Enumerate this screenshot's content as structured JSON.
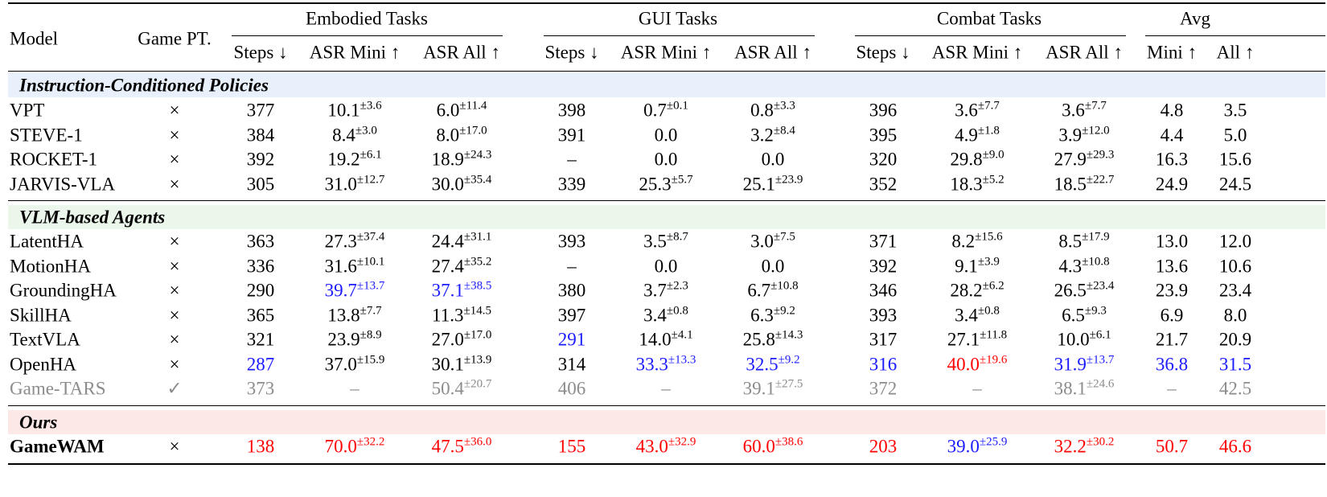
{
  "headers": {
    "model": "Model",
    "game_pt": "Game PT.",
    "groups": [
      "Embodied Tasks",
      "GUI Tasks",
      "Combat Tasks",
      "Avg"
    ],
    "sub": [
      "Steps ↓",
      "ASR Mini ↑",
      "ASR All ↑",
      "Steps ↓",
      "ASR Mini ↑",
      "ASR All ↑",
      "Steps ↓",
      "ASR Mini ↑",
      "ASR All ↑",
      "Mini ↑",
      "All ↑"
    ]
  },
  "sections": [
    {
      "title": "Instruction-Conditioned Policies",
      "rows": [
        {
          "model": "VPT",
          "pt": "×",
          "cells": [
            [
              "377",
              ""
            ],
            [
              "10.1",
              "±3.6"
            ],
            [
              "6.0",
              "±11.4"
            ],
            [
              "398",
              ""
            ],
            [
              "0.7",
              "±0.1"
            ],
            [
              "0.8",
              "±3.3"
            ],
            [
              "396",
              ""
            ],
            [
              "3.6",
              "±7.7"
            ],
            [
              "3.6",
              "±7.7"
            ],
            [
              "4.8",
              ""
            ],
            [
              "3.5",
              ""
            ]
          ]
        },
        {
          "model": "STEVE-1",
          "pt": "×",
          "cells": [
            [
              "384",
              ""
            ],
            [
              "8.4",
              "±3.0"
            ],
            [
              "8.0",
              "±17.0"
            ],
            [
              "391",
              ""
            ],
            [
              "0.0",
              ""
            ],
            [
              "3.2",
              "±8.4"
            ],
            [
              "395",
              ""
            ],
            [
              "4.9",
              "±1.8"
            ],
            [
              "3.9",
              "±12.0"
            ],
            [
              "4.4",
              ""
            ],
            [
              "5.0",
              ""
            ]
          ]
        },
        {
          "model": "ROCKET-1",
          "pt": "×",
          "cells": [
            [
              "392",
              ""
            ],
            [
              "19.2",
              "±6.1"
            ],
            [
              "18.9",
              "±24.3"
            ],
            [
              "–",
              ""
            ],
            [
              "0.0",
              ""
            ],
            [
              "0.0",
              ""
            ],
            [
              "320",
              ""
            ],
            [
              "29.8",
              "±9.0"
            ],
            [
              "27.9",
              "±29.3"
            ],
            [
              "16.3",
              ""
            ],
            [
              "15.6",
              ""
            ]
          ]
        },
        {
          "model": "JARVIS-VLA",
          "pt": "×",
          "cells": [
            [
              "305",
              ""
            ],
            [
              "31.0",
              "±12.7"
            ],
            [
              "30.0",
              "±35.4"
            ],
            [
              "339",
              ""
            ],
            [
              "25.3",
              "±5.7"
            ],
            [
              "25.1",
              "±23.9"
            ],
            [
              "352",
              ""
            ],
            [
              "18.3",
              "±5.2"
            ],
            [
              "18.5",
              "±22.7"
            ],
            [
              "24.9",
              ""
            ],
            [
              "24.5",
              ""
            ]
          ]
        }
      ]
    },
    {
      "title": "VLM-based Agents",
      "rows": [
        {
          "model": "LatentHA",
          "pt": "×",
          "cells": [
            [
              "363",
              ""
            ],
            [
              "27.3",
              "±37.4"
            ],
            [
              "24.4",
              "±31.1"
            ],
            [
              "393",
              ""
            ],
            [
              "3.5",
              "±8.7"
            ],
            [
              "3.0",
              "±7.5"
            ],
            [
              "371",
              ""
            ],
            [
              "8.2",
              "±15.6"
            ],
            [
              "8.5",
              "±17.9"
            ],
            [
              "13.0",
              ""
            ],
            [
              "12.0",
              ""
            ]
          ]
        },
        {
          "model": "MotionHA",
          "pt": "×",
          "cells": [
            [
              "336",
              ""
            ],
            [
              "31.6",
              "±10.1"
            ],
            [
              "27.4",
              "±35.2"
            ],
            [
              "–",
              ""
            ],
            [
              "0.0",
              ""
            ],
            [
              "0.0",
              ""
            ],
            [
              "392",
              ""
            ],
            [
              "9.1",
              "±3.9"
            ],
            [
              "4.3",
              "±10.8"
            ],
            [
              "13.6",
              ""
            ],
            [
              "10.6",
              ""
            ]
          ]
        },
        {
          "model": "GroundingHA",
          "pt": "×",
          "cells": [
            [
              "290",
              ""
            ],
            [
              "39.7",
              "±13.7",
              "blue"
            ],
            [
              "37.1",
              "±38.5",
              "blue"
            ],
            [
              "380",
              ""
            ],
            [
              "3.7",
              "±2.3"
            ],
            [
              "6.7",
              "±10.8"
            ],
            [
              "346",
              ""
            ],
            [
              "28.2",
              "±6.2"
            ],
            [
              "26.5",
              "±23.4"
            ],
            [
              "23.9",
              ""
            ],
            [
              "23.4",
              ""
            ]
          ]
        },
        {
          "model": "SkillHA",
          "pt": "×",
          "cells": [
            [
              "365",
              ""
            ],
            [
              "13.8",
              "±7.7"
            ],
            [
              "11.3",
              "±14.5"
            ],
            [
              "397",
              ""
            ],
            [
              "3.4",
              "±0.8"
            ],
            [
              "6.3",
              "±9.2"
            ],
            [
              "393",
              ""
            ],
            [
              "3.4",
              "±0.8"
            ],
            [
              "6.5",
              "±9.3"
            ],
            [
              "6.9",
              ""
            ],
            [
              "8.0",
              ""
            ]
          ]
        },
        {
          "model": "TextVLA",
          "pt": "×",
          "cells": [
            [
              "321",
              ""
            ],
            [
              "23.9",
              "±8.9"
            ],
            [
              "27.0",
              "±17.0"
            ],
            [
              "291",
              "",
              "blue"
            ],
            [
              "14.0",
              "±4.1"
            ],
            [
              "25.8",
              "±14.3"
            ],
            [
              "317",
              ""
            ],
            [
              "27.1",
              "±11.8"
            ],
            [
              "10.0",
              "±6.1"
            ],
            [
              "21.7",
              ""
            ],
            [
              "20.9",
              ""
            ]
          ]
        },
        {
          "model": "OpenHA",
          "pt": "×",
          "cells": [
            [
              "287",
              "",
              "blue"
            ],
            [
              "37.0",
              "±15.9"
            ],
            [
              "30.1",
              "±13.9"
            ],
            [
              "314",
              ""
            ],
            [
              "33.3",
              "±13.3",
              "blue"
            ],
            [
              "32.5",
              "±9.2",
              "blue"
            ],
            [
              "316",
              "",
              "blue"
            ],
            [
              "40.0",
              "±19.6",
              "red"
            ],
            [
              "31.9",
              "±13.7",
              "blue"
            ],
            [
              "36.8",
              "",
              "blue"
            ],
            [
              "31.5",
              "",
              "blue"
            ]
          ]
        },
        {
          "model": "Game-TARS",
          "pt": "✓",
          "gray": true,
          "cells": [
            [
              "373",
              ""
            ],
            [
              "–",
              ""
            ],
            [
              "50.4",
              "±20.7"
            ],
            [
              "406",
              ""
            ],
            [
              "–",
              ""
            ],
            [
              "39.1",
              "±27.5"
            ],
            [
              "372",
              ""
            ],
            [
              "–",
              ""
            ],
            [
              "38.1",
              "±24.6"
            ],
            [
              "–",
              ""
            ],
            [
              "42.5",
              ""
            ]
          ]
        }
      ]
    },
    {
      "title": "Ours",
      "rows": [
        {
          "model": "GameWAM",
          "pt": "×",
          "bold": true,
          "cells": [
            [
              "138",
              "",
              "red"
            ],
            [
              "70.0",
              "±32.2",
              "red"
            ],
            [
              "47.5",
              "±36.0",
              "red"
            ],
            [
              "155",
              "",
              "red"
            ],
            [
              "43.0",
              "±32.9",
              "red"
            ],
            [
              "60.0",
              "±38.6",
              "red"
            ],
            [
              "203",
              "",
              "red"
            ],
            [
              "39.0",
              "±25.9",
              "blue"
            ],
            [
              "32.2",
              "±30.2",
              "red"
            ],
            [
              "50.7",
              "",
              "red"
            ],
            [
              "46.6",
              "",
              "red"
            ]
          ]
        }
      ]
    }
  ],
  "colors": {
    "blue": "#1a1aff",
    "red": "#ff0000",
    "gray": "#8c8c8c",
    "band_policies": "#e7f0fb",
    "band_vlm": "#ebf7ea",
    "band_ours": "#fde8e8"
  }
}
